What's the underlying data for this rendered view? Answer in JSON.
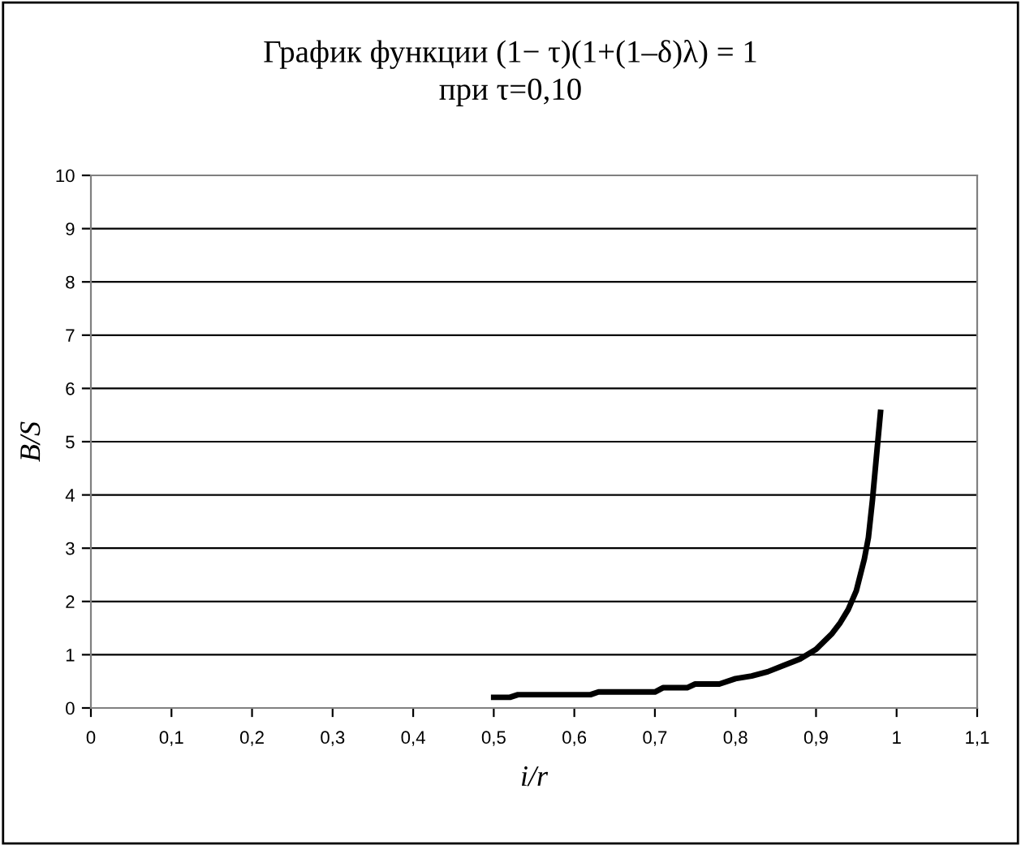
{
  "chart_data": {
    "type": "line",
    "title": "График функции (1− τ)(1+(1–δ)λ) = 1\nпри τ=0,10",
    "xlabel": "i/r",
    "ylabel": "B/S",
    "x": [
      0.5,
      0.52,
      0.53,
      0.62,
      0.63,
      0.7,
      0.71,
      0.74,
      0.75,
      0.78,
      0.8,
      0.82,
      0.84,
      0.86,
      0.88,
      0.9,
      0.91,
      0.92,
      0.93,
      0.94,
      0.95,
      0.96,
      0.965,
      0.97,
      0.98
    ],
    "series": [
      {
        "color": "#000000",
        "values": [
          0.2,
          0.2,
          0.25,
          0.25,
          0.3,
          0.3,
          0.38,
          0.38,
          0.45,
          0.45,
          0.55,
          0.6,
          0.68,
          0.8,
          0.92,
          1.1,
          1.25,
          1.4,
          1.6,
          1.85,
          2.2,
          2.8,
          3.2,
          3.9,
          5.55
        ]
      }
    ],
    "xlim": [
      0,
      1.1
    ],
    "xticks": [
      {
        "value": 0,
        "label": "0"
      },
      {
        "value": 0.1,
        "label": "0,1"
      },
      {
        "value": 0.2,
        "label": "0,2"
      },
      {
        "value": 0.3,
        "label": "0,3"
      },
      {
        "value": 0.4,
        "label": "0,4"
      },
      {
        "value": 0.5,
        "label": "0,5"
      },
      {
        "value": 0.6,
        "label": "0,6"
      },
      {
        "value": 0.7,
        "label": "0,7"
      },
      {
        "value": 0.8,
        "label": "0,8"
      },
      {
        "value": 0.9,
        "label": "0,9"
      },
      {
        "value": 1,
        "label": "1"
      },
      {
        "value": 1.1,
        "label": "1,1"
      }
    ],
    "ylim": [
      0,
      10
    ],
    "yticks": [
      0,
      1,
      2,
      3,
      4,
      5,
      6,
      7,
      8,
      9,
      10
    ],
    "grid": "y",
    "line_style": "solid",
    "marker": "none",
    "legend": false
  }
}
